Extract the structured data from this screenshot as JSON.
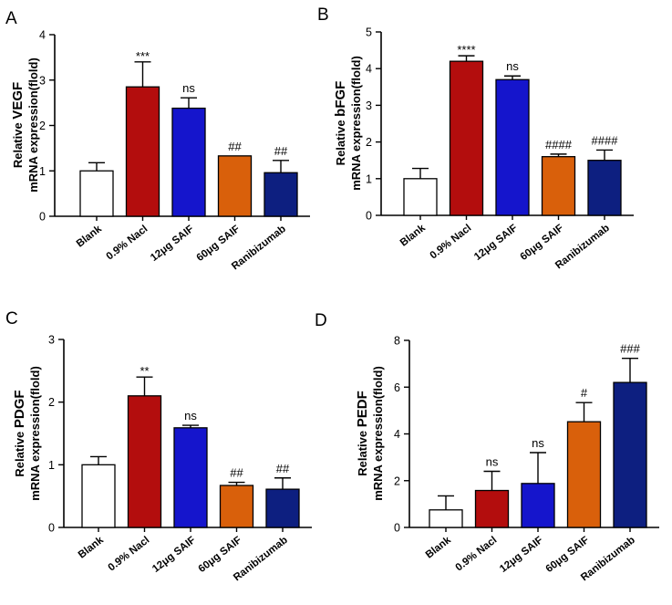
{
  "chart_data": [
    {
      "panel": "A",
      "type": "bar",
      "ylabel_line1_prefix": "Relative ",
      "ylabel_line1_gene": "VEGF",
      "ylabel_line2": "mRNA  expression(flold)",
      "categories": [
        "Blank",
        "0.9% Nacl",
        "12μg SAIF",
        "60μg SAIF",
        "Ranibizumab"
      ],
      "values": [
        1.0,
        2.85,
        2.38,
        1.33,
        0.96
      ],
      "errors": [
        0.18,
        0.55,
        0.23,
        0.0,
        0.27
      ],
      "annotations": [
        "",
        "***",
        "ns",
        "##",
        "##"
      ],
      "colors": [
        "#ffffff",
        "#b30d0d",
        "#1515cc",
        "#d9600b",
        "#0d1f80"
      ],
      "ylim": [
        0,
        4
      ],
      "yticks": [
        0,
        1,
        2,
        3,
        4
      ]
    },
    {
      "panel": "B",
      "type": "bar",
      "ylabel_line1_prefix": "Relative ",
      "ylabel_line1_gene": "bFGF",
      "ylabel_line2": "mRNA  expression(flold)",
      "categories": [
        "Blank",
        "0.9% Nacl",
        "12μg SAIF",
        "60μg SAIF",
        "Ranibizumab"
      ],
      "values": [
        1.0,
        4.2,
        3.7,
        1.6,
        1.5
      ],
      "errors": [
        0.28,
        0.15,
        0.1,
        0.07,
        0.28
      ],
      "annotations": [
        "",
        "****",
        "ns",
        "####",
        "####"
      ],
      "colors": [
        "#ffffff",
        "#b30d0d",
        "#1515cc",
        "#d9600b",
        "#0d1f80"
      ],
      "ylim": [
        0,
        5
      ],
      "yticks": [
        0,
        1,
        2,
        3,
        4,
        5
      ]
    },
    {
      "panel": "C",
      "type": "bar",
      "ylabel_line1_prefix": "Relative ",
      "ylabel_line1_gene": "PDGF",
      "ylabel_line2": "mRNA  expression(flold)",
      "categories": [
        "Blank",
        "0.9% Nacl",
        "12μg SAIF",
        "60μg SAIF",
        "Ranibizumab"
      ],
      "values": [
        1.0,
        2.1,
        1.59,
        0.67,
        0.61
      ],
      "errors": [
        0.13,
        0.3,
        0.04,
        0.05,
        0.18
      ],
      "annotations": [
        "",
        "**",
        "ns",
        "##",
        "##"
      ],
      "colors": [
        "#ffffff",
        "#b30d0d",
        "#1515cc",
        "#d9600b",
        "#0d1f80"
      ],
      "ylim": [
        0,
        3
      ],
      "yticks": [
        0,
        1,
        2,
        3
      ]
    },
    {
      "panel": "D",
      "type": "bar",
      "ylabel_line1_prefix": "Relative ",
      "ylabel_line1_gene": "PEDF",
      "ylabel_line2": "mRNA  expression(flold)",
      "categories": [
        "Blank",
        "0.9% Nacl",
        "12μg SAIF",
        "60μg SAIF",
        "Ranibizumab"
      ],
      "values": [
        0.75,
        1.58,
        1.88,
        4.52,
        6.2
      ],
      "errors": [
        0.6,
        0.82,
        1.32,
        0.82,
        1.03
      ],
      "annotations": [
        "",
        "ns",
        "ns",
        "#",
        "###"
      ],
      "colors": [
        "#ffffff",
        "#b30d0d",
        "#1515cc",
        "#d9600b",
        "#0d1f80"
      ],
      "ylim": [
        0,
        8
      ],
      "yticks": [
        0,
        2,
        4,
        6,
        8
      ]
    }
  ]
}
